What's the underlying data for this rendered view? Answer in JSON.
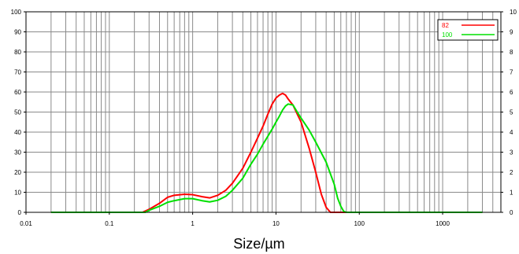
{
  "chart_data": {
    "type": "line",
    "title": "",
    "xlabel": "Size/µm",
    "ylabel": "",
    "x_scale": "log",
    "xlim": [
      0.01,
      5000
    ],
    "ylim": [
      0,
      100
    ],
    "y2lim": [
      0,
      10
    ],
    "grid": true,
    "legend_position": "top-right",
    "x_ticks": [
      "0.01",
      "0.1",
      "1",
      "10",
      "100",
      "1000"
    ],
    "y_ticks": [
      "0",
      "10",
      "20",
      "30",
      "40",
      "50",
      "60",
      "70",
      "80",
      "90",
      "100"
    ],
    "y2_ticks": [
      "0",
      "1",
      "2",
      "3",
      "4",
      "5",
      "6",
      "7",
      "8",
      "9",
      "10"
    ],
    "series": [
      {
        "name": "82",
        "color": "#ff0000",
        "points": [
          [
            0.02,
            0
          ],
          [
            0.25,
            0
          ],
          [
            0.3,
            1.5
          ],
          [
            0.4,
            4.5
          ],
          [
            0.5,
            7.5
          ],
          [
            0.6,
            8.5
          ],
          [
            0.8,
            9
          ],
          [
            1.0,
            8.8
          ],
          [
            1.3,
            7.8
          ],
          [
            1.6,
            7.2
          ],
          [
            2.0,
            8.5
          ],
          [
            2.5,
            11
          ],
          [
            3.0,
            14.5
          ],
          [
            4.0,
            22
          ],
          [
            5.0,
            30
          ],
          [
            6.0,
            37
          ],
          [
            7.0,
            43
          ],
          [
            8.0,
            49
          ],
          [
            9.0,
            54
          ],
          [
            10,
            57
          ],
          [
            11,
            58.5
          ],
          [
            12,
            59.3
          ],
          [
            13,
            58.5
          ],
          [
            14,
            56.5
          ],
          [
            16,
            53.5
          ],
          [
            18,
            49
          ],
          [
            20,
            45
          ],
          [
            25,
            32
          ],
          [
            30,
            20
          ],
          [
            35,
            9
          ],
          [
            40,
            2.5
          ],
          [
            45,
            0
          ],
          [
            100,
            0
          ],
          [
            3000,
            0
          ]
        ]
      },
      {
        "name": "100",
        "color": "#00e000",
        "points": [
          [
            0.02,
            0
          ],
          [
            0.27,
            0
          ],
          [
            0.3,
            1
          ],
          [
            0.4,
            3
          ],
          [
            0.5,
            5
          ],
          [
            0.6,
            5.8
          ],
          [
            0.8,
            6.8
          ],
          [
            1.0,
            6.8
          ],
          [
            1.3,
            5.8
          ],
          [
            1.6,
            5.2
          ],
          [
            2.0,
            6
          ],
          [
            2.5,
            8
          ],
          [
            3.0,
            11
          ],
          [
            4.0,
            17
          ],
          [
            5.0,
            24
          ],
          [
            6.0,
            29
          ],
          [
            7.0,
            34
          ],
          [
            8.0,
            38
          ],
          [
            9.0,
            41.5
          ],
          [
            10,
            45
          ],
          [
            11,
            48
          ],
          [
            12,
            51
          ],
          [
            13,
            53
          ],
          [
            14,
            54
          ],
          [
            16,
            53.5
          ],
          [
            18,
            50
          ],
          [
            20,
            47
          ],
          [
            25,
            41
          ],
          [
            30,
            35
          ],
          [
            40,
            25
          ],
          [
            50,
            14
          ],
          [
            55,
            7
          ],
          [
            60,
            3
          ],
          [
            65,
            0.5
          ],
          [
            70,
            0
          ],
          [
            100,
            0
          ],
          [
            3000,
            0
          ]
        ]
      }
    ]
  }
}
